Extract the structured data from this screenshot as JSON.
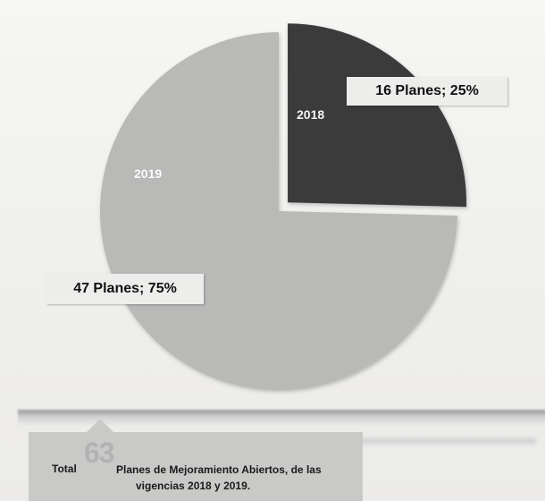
{
  "chart_data": {
    "type": "pie",
    "categories": [
      "2018",
      "2019"
    ],
    "values": [
      16,
      47
    ],
    "percentages": [
      25,
      75
    ],
    "data_labels": [
      "16 Planes; 25%",
      "47 Planes; 75%"
    ],
    "colors": [
      "#3a3b3a",
      "#b9b9b8"
    ],
    "exploded": [
      "2018"
    ],
    "title": "",
    "legend": false
  },
  "caption": {
    "total_word": "Total",
    "total_number": "63",
    "line1": "Planes de Mejoramiento Abiertos, de las",
    "line2": "vigencias  2018 y 2019."
  }
}
